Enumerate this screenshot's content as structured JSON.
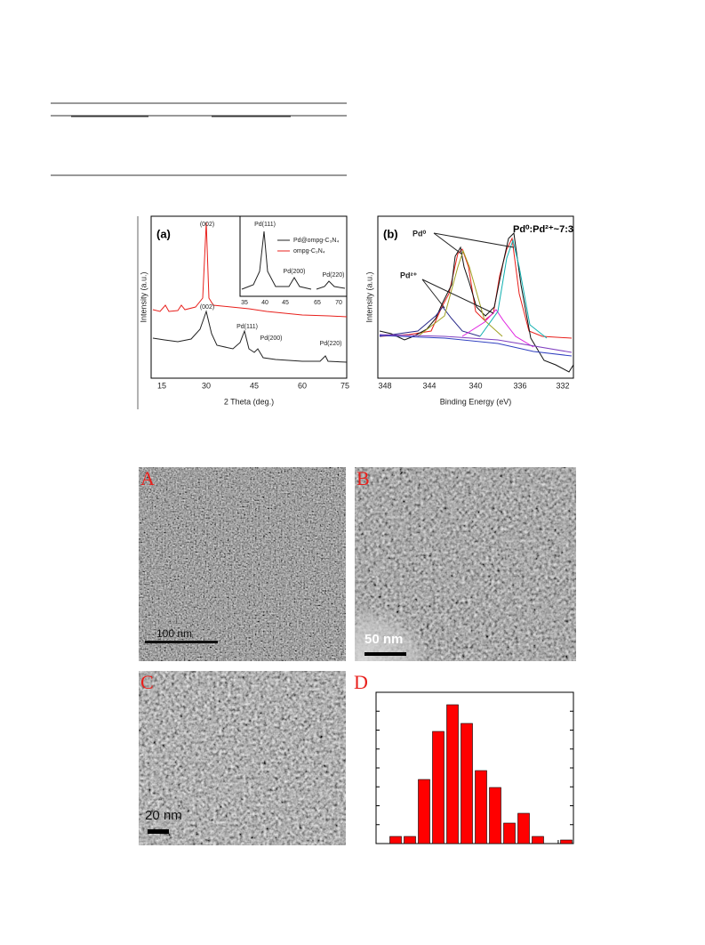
{
  "figure_1": {
    "panel_a": {
      "label": "(a)",
      "peak_002": "(002)",
      "peak_002_lower": "(002)",
      "pd111": "Pd(111)",
      "pd200": "Pd(200)",
      "pd220": "Pd(220)",
      "inset_pd111": "Pd(111)",
      "inset_pd200": "Pd(200)",
      "inset_pd220": "Pd(220)",
      "legend": [
        "Pd@ompg-C₃N₄",
        "ompg-C₃N₄"
      ],
      "y_label": "Intensity (a.u.)",
      "x_label": "2 Theta (deg.)",
      "xticks": [
        "15",
        "30",
        "45",
        "60",
        "75"
      ],
      "inset_xticks": [
        "35",
        "40",
        "45",
        "65",
        "70"
      ]
    },
    "panel_b": {
      "label": "(b)",
      "pd0": "Pd⁰",
      "pd2": "Pd²⁺",
      "ratio": "Pd⁰:Pd²⁺~7:3",
      "y_label": "Intensity (a.u.)",
      "x_label": "Binding Energy (eV)",
      "xticks": [
        "348",
        "344",
        "340",
        "336",
        "332"
      ]
    }
  },
  "figure_2": {
    "labels": [
      "A",
      "B",
      "C",
      "D"
    ],
    "scale_bars": [
      "100 nm",
      "50 nm",
      "20 nm"
    ],
    "histogram": {
      "type": "bar",
      "values": [
        8,
        8,
        72,
        126,
        156,
        135,
        82,
        63,
        23,
        34,
        8,
        0,
        4
      ],
      "ylim": [
        0,
        170
      ],
      "color": "#ff0000"
    }
  }
}
